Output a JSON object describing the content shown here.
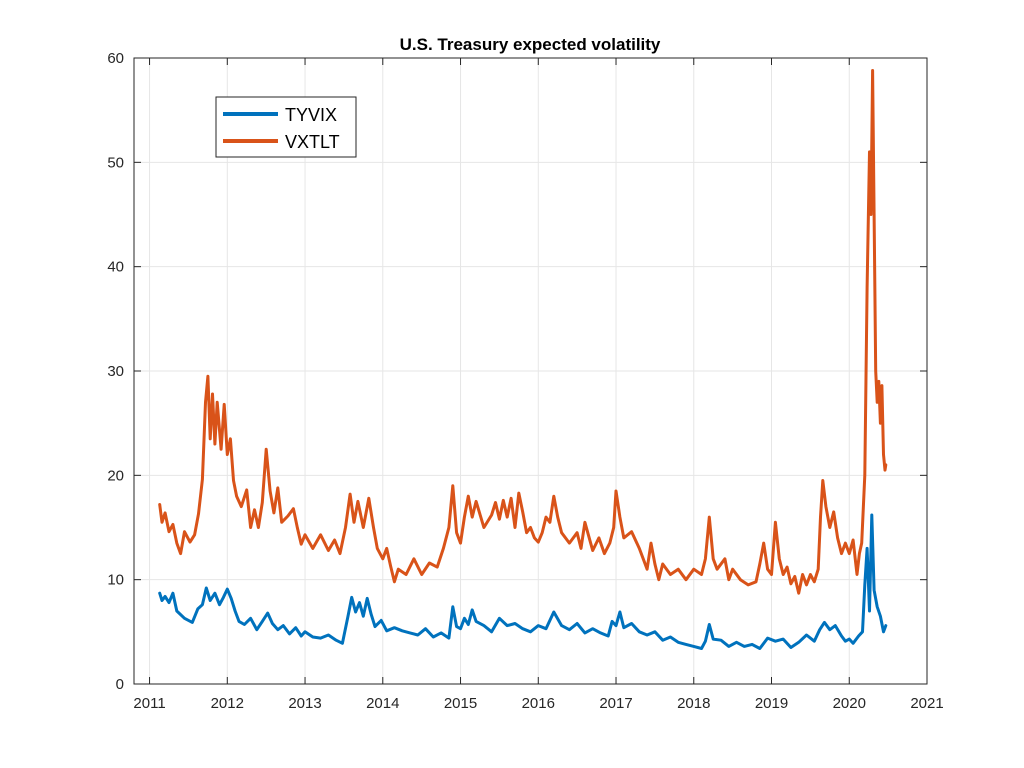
{
  "chart_data": {
    "type": "line",
    "title": "U.S. Treasury expected volatility",
    "xlabel": "",
    "ylabel": "",
    "xlim": [
      2010.8,
      2021.0
    ],
    "ylim": [
      0,
      60
    ],
    "x_ticks": [
      "2011",
      "2012",
      "2013",
      "2014",
      "2015",
      "2016",
      "2017",
      "2018",
      "2019",
      "2020",
      "2021"
    ],
    "y_ticks": [
      "0",
      "10",
      "20",
      "30",
      "40",
      "50",
      "60"
    ],
    "grid": true,
    "legend_position": "top-left",
    "series": [
      {
        "name": "TYVIX",
        "color": "#0072BD",
        "points": [
          [
            2011.13,
            8.7
          ],
          [
            2011.16,
            8.0
          ],
          [
            2011.2,
            8.4
          ],
          [
            2011.25,
            7.8
          ],
          [
            2011.3,
            8.7
          ],
          [
            2011.35,
            7.0
          ],
          [
            2011.45,
            6.3
          ],
          [
            2011.55,
            5.9
          ],
          [
            2011.62,
            7.2
          ],
          [
            2011.68,
            7.6
          ],
          [
            2011.73,
            9.2
          ],
          [
            2011.78,
            8.0
          ],
          [
            2011.84,
            8.7
          ],
          [
            2011.9,
            7.6
          ],
          [
            2011.95,
            8.3
          ],
          [
            2012.0,
            9.1
          ],
          [
            2012.05,
            8.2
          ],
          [
            2012.1,
            7.0
          ],
          [
            2012.15,
            6.0
          ],
          [
            2012.22,
            5.7
          ],
          [
            2012.3,
            6.3
          ],
          [
            2012.38,
            5.2
          ],
          [
            2012.45,
            6.0
          ],
          [
            2012.52,
            6.8
          ],
          [
            2012.58,
            5.8
          ],
          [
            2012.65,
            5.2
          ],
          [
            2012.72,
            5.6
          ],
          [
            2012.8,
            4.8
          ],
          [
            2012.88,
            5.4
          ],
          [
            2012.95,
            4.6
          ],
          [
            2013.0,
            5.0
          ],
          [
            2013.1,
            4.5
          ],
          [
            2013.2,
            4.4
          ],
          [
            2013.3,
            4.7
          ],
          [
            2013.4,
            4.2
          ],
          [
            2013.48,
            3.9
          ],
          [
            2013.55,
            6.4
          ],
          [
            2013.6,
            8.3
          ],
          [
            2013.65,
            6.9
          ],
          [
            2013.7,
            7.8
          ],
          [
            2013.75,
            6.5
          ],
          [
            2013.8,
            8.2
          ],
          [
            2013.85,
            6.7
          ],
          [
            2013.9,
            5.5
          ],
          [
            2013.98,
            6.1
          ],
          [
            2014.05,
            5.1
          ],
          [
            2014.15,
            5.4
          ],
          [
            2014.25,
            5.1
          ],
          [
            2014.35,
            4.9
          ],
          [
            2014.45,
            4.7
          ],
          [
            2014.55,
            5.3
          ],
          [
            2014.65,
            4.5
          ],
          [
            2014.75,
            4.9
          ],
          [
            2014.85,
            4.4
          ],
          [
            2014.9,
            7.4
          ],
          [
            2014.95,
            5.5
          ],
          [
            2015.0,
            5.3
          ],
          [
            2015.05,
            6.3
          ],
          [
            2015.1,
            5.7
          ],
          [
            2015.15,
            7.1
          ],
          [
            2015.2,
            6.0
          ],
          [
            2015.3,
            5.6
          ],
          [
            2015.4,
            5.0
          ],
          [
            2015.5,
            6.3
          ],
          [
            2015.6,
            5.6
          ],
          [
            2015.7,
            5.8
          ],
          [
            2015.8,
            5.3
          ],
          [
            2015.9,
            5.0
          ],
          [
            2016.0,
            5.6
          ],
          [
            2016.1,
            5.3
          ],
          [
            2016.2,
            6.9
          ],
          [
            2016.3,
            5.6
          ],
          [
            2016.4,
            5.2
          ],
          [
            2016.5,
            5.8
          ],
          [
            2016.6,
            4.9
          ],
          [
            2016.7,
            5.3
          ],
          [
            2016.8,
            4.9
          ],
          [
            2016.9,
            4.6
          ],
          [
            2016.95,
            6.0
          ],
          [
            2017.0,
            5.6
          ],
          [
            2017.05,
            6.9
          ],
          [
            2017.1,
            5.4
          ],
          [
            2017.2,
            5.8
          ],
          [
            2017.3,
            5.0
          ],
          [
            2017.4,
            4.7
          ],
          [
            2017.5,
            5.0
          ],
          [
            2017.6,
            4.2
          ],
          [
            2017.7,
            4.5
          ],
          [
            2017.8,
            4.0
          ],
          [
            2017.9,
            3.8
          ],
          [
            2018.0,
            3.6
          ],
          [
            2018.1,
            3.4
          ],
          [
            2018.15,
            4.1
          ],
          [
            2018.2,
            5.7
          ],
          [
            2018.25,
            4.3
          ],
          [
            2018.35,
            4.2
          ],
          [
            2018.45,
            3.6
          ],
          [
            2018.55,
            4.0
          ],
          [
            2018.65,
            3.6
          ],
          [
            2018.75,
            3.8
          ],
          [
            2018.85,
            3.4
          ],
          [
            2018.95,
            4.4
          ],
          [
            2019.05,
            4.1
          ],
          [
            2019.15,
            4.3
          ],
          [
            2019.25,
            3.5
          ],
          [
            2019.35,
            4.0
          ],
          [
            2019.45,
            4.7
          ],
          [
            2019.55,
            4.1
          ],
          [
            2019.62,
            5.2
          ],
          [
            2019.68,
            5.9
          ],
          [
            2019.75,
            5.2
          ],
          [
            2019.82,
            5.6
          ],
          [
            2019.9,
            4.6
          ],
          [
            2019.95,
            4.1
          ],
          [
            2020.0,
            4.3
          ],
          [
            2020.05,
            3.9
          ],
          [
            2020.12,
            4.6
          ],
          [
            2020.17,
            5.0
          ],
          [
            2020.2,
            9.5
          ],
          [
            2020.23,
            13.0
          ],
          [
            2020.26,
            7.0
          ],
          [
            2020.29,
            16.2
          ],
          [
            2020.32,
            9.0
          ],
          [
            2020.36,
            7.4
          ],
          [
            2020.4,
            6.5
          ],
          [
            2020.44,
            5.0
          ],
          [
            2020.47,
            5.6
          ]
        ]
      },
      {
        "name": "VXTLT",
        "color": "#D95319",
        "points": [
          [
            2011.13,
            17.2
          ],
          [
            2011.16,
            15.5
          ],
          [
            2011.2,
            16.4
          ],
          [
            2011.25,
            14.6
          ],
          [
            2011.3,
            15.3
          ],
          [
            2011.35,
            13.5
          ],
          [
            2011.4,
            12.5
          ],
          [
            2011.45,
            14.6
          ],
          [
            2011.52,
            13.6
          ],
          [
            2011.58,
            14.3
          ],
          [
            2011.63,
            16.3
          ],
          [
            2011.68,
            19.6
          ],
          [
            2011.72,
            27.0
          ],
          [
            2011.75,
            29.5
          ],
          [
            2011.78,
            23.5
          ],
          [
            2011.81,
            27.8
          ],
          [
            2011.84,
            23.0
          ],
          [
            2011.87,
            27.0
          ],
          [
            2011.92,
            22.5
          ],
          [
            2011.96,
            26.8
          ],
          [
            2012.0,
            22.0
          ],
          [
            2012.04,
            23.5
          ],
          [
            2012.08,
            19.5
          ],
          [
            2012.12,
            18.0
          ],
          [
            2012.18,
            17.0
          ],
          [
            2012.25,
            18.6
          ],
          [
            2012.3,
            15.0
          ],
          [
            2012.35,
            16.7
          ],
          [
            2012.4,
            15.0
          ],
          [
            2012.45,
            17.4
          ],
          [
            2012.5,
            22.5
          ],
          [
            2012.55,
            18.5
          ],
          [
            2012.6,
            16.4
          ],
          [
            2012.65,
            18.8
          ],
          [
            2012.7,
            15.5
          ],
          [
            2012.78,
            16.1
          ],
          [
            2012.85,
            16.8
          ],
          [
            2012.9,
            15.0
          ],
          [
            2012.95,
            13.4
          ],
          [
            2013.0,
            14.3
          ],
          [
            2013.1,
            13.0
          ],
          [
            2013.2,
            14.3
          ],
          [
            2013.3,
            12.8
          ],
          [
            2013.38,
            13.8
          ],
          [
            2013.45,
            12.5
          ],
          [
            2013.52,
            15.0
          ],
          [
            2013.58,
            18.2
          ],
          [
            2013.63,
            15.5
          ],
          [
            2013.68,
            17.5
          ],
          [
            2013.75,
            15.0
          ],
          [
            2013.82,
            17.8
          ],
          [
            2013.88,
            15.0
          ],
          [
            2013.93,
            13.0
          ],
          [
            2014.0,
            12.0
          ],
          [
            2014.05,
            13.0
          ],
          [
            2014.1,
            11.3
          ],
          [
            2014.15,
            9.8
          ],
          [
            2014.2,
            11.0
          ],
          [
            2014.3,
            10.5
          ],
          [
            2014.4,
            12.0
          ],
          [
            2014.5,
            10.5
          ],
          [
            2014.6,
            11.6
          ],
          [
            2014.7,
            11.2
          ],
          [
            2014.78,
            13.0
          ],
          [
            2014.85,
            15.0
          ],
          [
            2014.9,
            19.0
          ],
          [
            2014.95,
            14.5
          ],
          [
            2015.0,
            13.5
          ],
          [
            2015.05,
            16.0
          ],
          [
            2015.1,
            18.0
          ],
          [
            2015.15,
            16.0
          ],
          [
            2015.2,
            17.5
          ],
          [
            2015.3,
            15.0
          ],
          [
            2015.4,
            16.2
          ],
          [
            2015.45,
            17.4
          ],
          [
            2015.5,
            15.8
          ],
          [
            2015.55,
            17.6
          ],
          [
            2015.6,
            16.0
          ],
          [
            2015.65,
            17.8
          ],
          [
            2015.7,
            15.0
          ],
          [
            2015.75,
            18.3
          ],
          [
            2015.8,
            16.5
          ],
          [
            2015.85,
            14.5
          ],
          [
            2015.9,
            15.0
          ],
          [
            2015.95,
            14.0
          ],
          [
            2016.0,
            13.6
          ],
          [
            2016.05,
            14.5
          ],
          [
            2016.1,
            16.0
          ],
          [
            2016.15,
            15.5
          ],
          [
            2016.2,
            18.0
          ],
          [
            2016.25,
            16.0
          ],
          [
            2016.3,
            14.5
          ],
          [
            2016.4,
            13.5
          ],
          [
            2016.5,
            14.5
          ],
          [
            2016.55,
            13.0
          ],
          [
            2016.6,
            15.5
          ],
          [
            2016.7,
            12.8
          ],
          [
            2016.78,
            14.0
          ],
          [
            2016.85,
            12.5
          ],
          [
            2016.92,
            13.5
          ],
          [
            2016.97,
            15.0
          ],
          [
            2017.0,
            18.5
          ],
          [
            2017.05,
            16.0
          ],
          [
            2017.1,
            14.0
          ],
          [
            2017.2,
            14.6
          ],
          [
            2017.3,
            13.0
          ],
          [
            2017.4,
            11.0
          ],
          [
            2017.45,
            13.5
          ],
          [
            2017.5,
            11.5
          ],
          [
            2017.55,
            10.0
          ],
          [
            2017.6,
            11.5
          ],
          [
            2017.7,
            10.5
          ],
          [
            2017.8,
            11.0
          ],
          [
            2017.9,
            10.0
          ],
          [
            2018.0,
            11.0
          ],
          [
            2018.1,
            10.5
          ],
          [
            2018.15,
            12.0
          ],
          [
            2018.2,
            16.0
          ],
          [
            2018.25,
            12.0
          ],
          [
            2018.3,
            11.0
          ],
          [
            2018.4,
            12.0
          ],
          [
            2018.45,
            10.0
          ],
          [
            2018.5,
            11.0
          ],
          [
            2018.6,
            10.0
          ],
          [
            2018.7,
            9.5
          ],
          [
            2018.8,
            9.8
          ],
          [
            2018.85,
            11.5
          ],
          [
            2018.9,
            13.5
          ],
          [
            2018.95,
            11.0
          ],
          [
            2019.0,
            10.5
          ],
          [
            2019.05,
            15.5
          ],
          [
            2019.1,
            12.0
          ],
          [
            2019.15,
            10.5
          ],
          [
            2019.2,
            11.2
          ],
          [
            2019.25,
            9.6
          ],
          [
            2019.3,
            10.3
          ],
          [
            2019.35,
            8.7
          ],
          [
            2019.4,
            10.5
          ],
          [
            2019.45,
            9.5
          ],
          [
            2019.5,
            10.5
          ],
          [
            2019.55,
            9.8
          ],
          [
            2019.6,
            11.0
          ],
          [
            2019.63,
            16.0
          ],
          [
            2019.66,
            19.5
          ],
          [
            2019.7,
            17.0
          ],
          [
            2019.75,
            15.0
          ],
          [
            2019.8,
            16.5
          ],
          [
            2019.85,
            14.0
          ],
          [
            2019.9,
            12.5
          ],
          [
            2019.95,
            13.5
          ],
          [
            2020.0,
            12.5
          ],
          [
            2020.05,
            13.8
          ],
          [
            2020.1,
            10.5
          ],
          [
            2020.13,
            12.5
          ],
          [
            2020.16,
            13.5
          ],
          [
            2020.2,
            20.0
          ],
          [
            2020.23,
            38.0
          ],
          [
            2020.26,
            51.0
          ],
          [
            2020.28,
            45.0
          ],
          [
            2020.3,
            58.8
          ],
          [
            2020.32,
            45.0
          ],
          [
            2020.34,
            30.0
          ],
          [
            2020.36,
            27.0
          ],
          [
            2020.38,
            29.0
          ],
          [
            2020.4,
            25.0
          ],
          [
            2020.42,
            28.6
          ],
          [
            2020.44,
            22.0
          ],
          [
            2020.46,
            20.5
          ],
          [
            2020.47,
            21.0
          ]
        ]
      }
    ]
  }
}
